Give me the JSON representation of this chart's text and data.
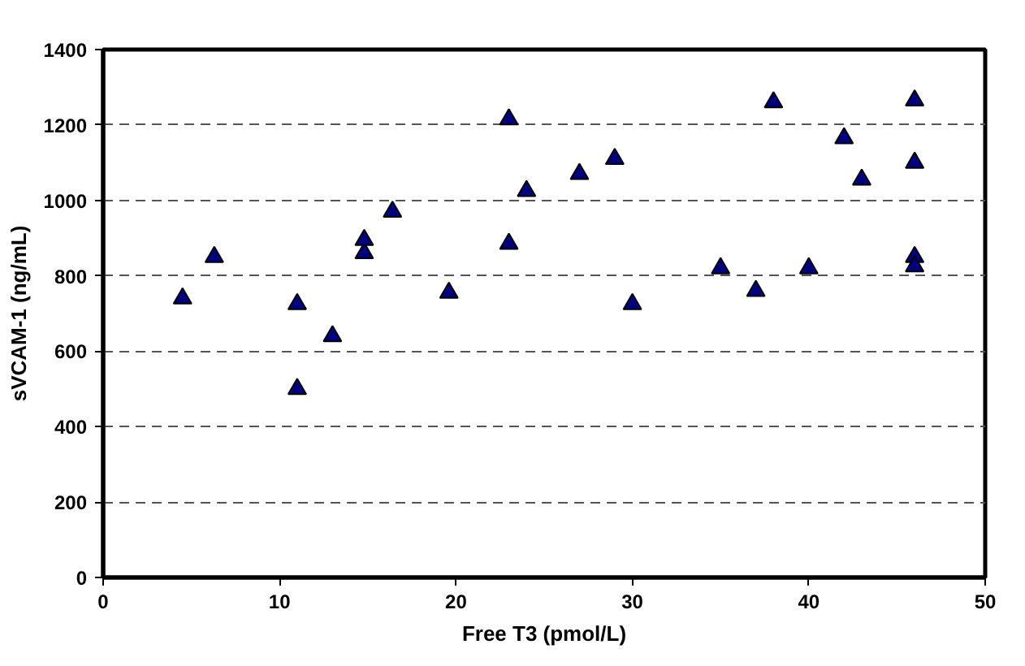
{
  "chart_data": {
    "type": "scatter",
    "xlabel": "Free T3 (pmol/L)",
    "ylabel": "sVCAM-1 (ng/mL)",
    "x": [
      4.5,
      6.3,
      11,
      11,
      13,
      14.8,
      14.8,
      16.4,
      19.6,
      23,
      23,
      24,
      27,
      29,
      30,
      35,
      37,
      38,
      40,
      42,
      43,
      46,
      46,
      46,
      46
    ],
    "series": [
      {
        "color": "#000080",
        "values": [
          740,
          850,
          725,
          500,
          640,
          860,
          895,
          970,
          755,
          1215,
          885,
          1025,
          1070,
          1110,
          725,
          820,
          760,
          1260,
          820,
          1165,
          1055,
          1265,
          1100,
          850,
          825
        ]
      }
    ],
    "xlim": [
      0,
      50
    ],
    "xticks": [
      0,
      10,
      20,
      30,
      40,
      50
    ],
    "ylim": [
      0,
      1400
    ],
    "yticks": [
      0,
      200,
      400,
      600,
      800,
      1000,
      1200,
      1400
    ],
    "grid": "y",
    "marker": "triangle"
  }
}
